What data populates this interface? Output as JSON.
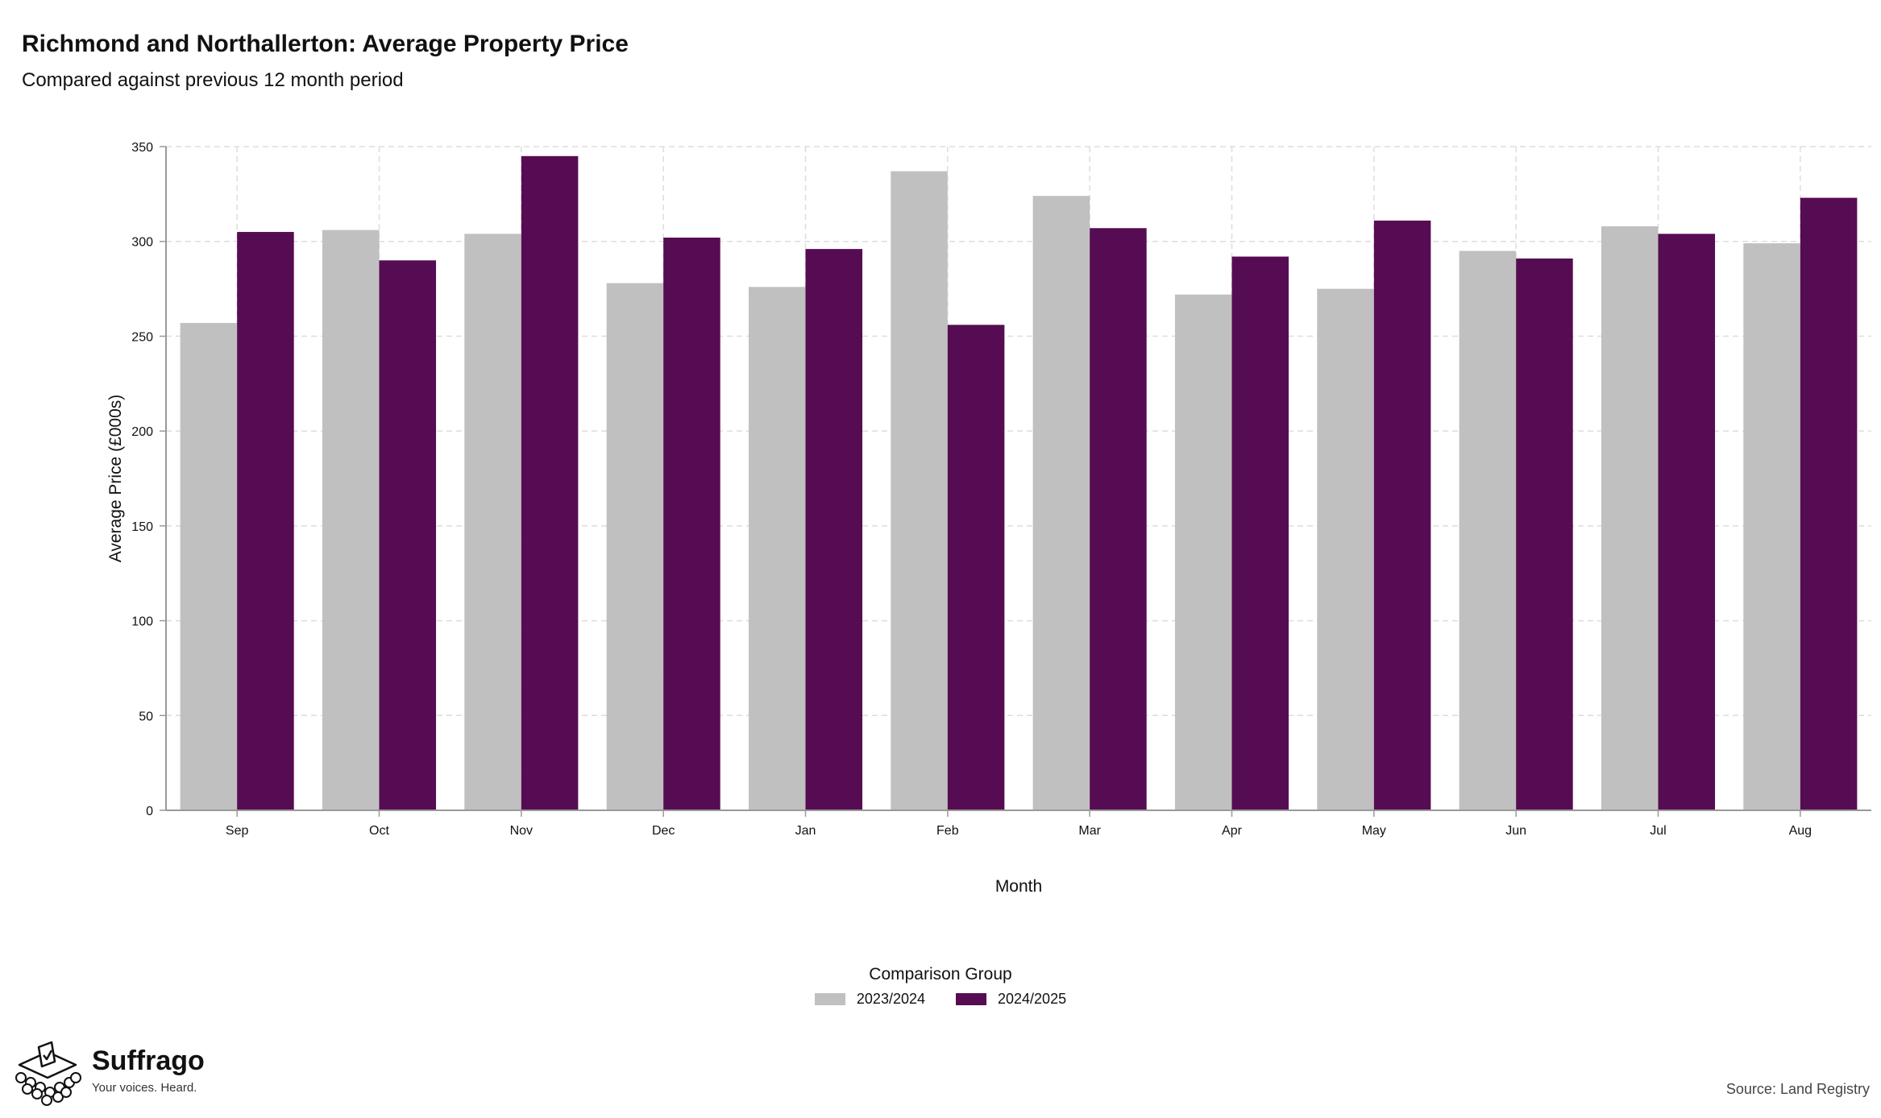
{
  "title": "Richmond and Northallerton: Average Property Price",
  "subtitle": "Compared against previous 12 month period",
  "source": "Source: Land Registry",
  "brand": {
    "name": "Suffrago",
    "tagline": "Your voices. Heard."
  },
  "legend": {
    "title": "Comparison Group"
  },
  "colors": {
    "series_1": "#c0c0c0",
    "series_2": "#560c52",
    "grid": "#dddddd",
    "axis": "#999999"
  },
  "chart_data": {
    "type": "bar",
    "xlabel": "Month",
    "ylabel": "Average Price (£000s)",
    "ylim": [
      0,
      350
    ],
    "yticks": [
      0,
      50,
      100,
      150,
      200,
      250,
      300,
      350
    ],
    "grid": true,
    "legend_position": "bottom-center",
    "categories": [
      "Sep",
      "Oct",
      "Nov",
      "Dec",
      "Jan",
      "Feb",
      "Mar",
      "Apr",
      "May",
      "Jun",
      "Jul",
      "Aug"
    ],
    "series": [
      {
        "name": "2023/2024",
        "values": [
          257,
          306,
          304,
          278,
          276,
          337,
          324,
          272,
          275,
          295,
          308,
          299
        ]
      },
      {
        "name": "2024/2025",
        "values": [
          305,
          290,
          345,
          302,
          296,
          256,
          307,
          292,
          311,
          291,
          304,
          323
        ]
      }
    ]
  }
}
